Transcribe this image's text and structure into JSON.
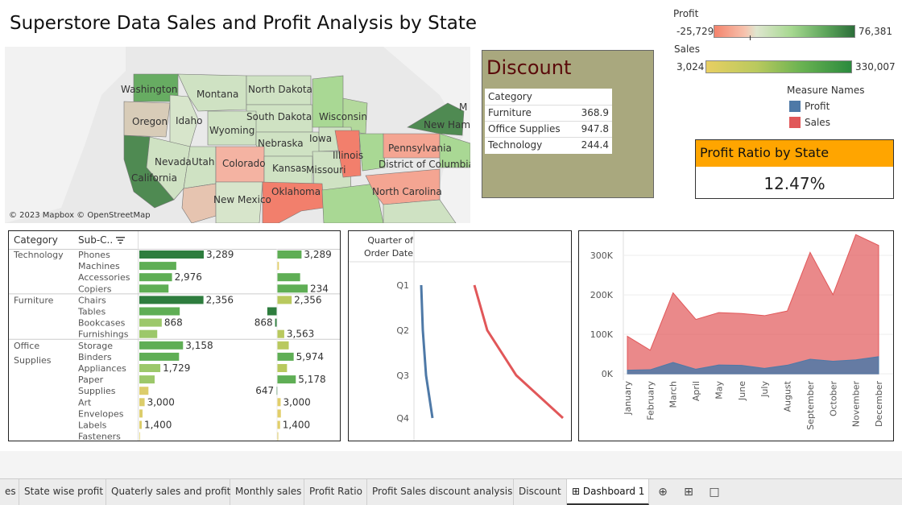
{
  "dashboard": {
    "title": "Superstore Data Sales and Profit Analysis by State"
  },
  "legends": {
    "profit": {
      "label": "Profit",
      "min": "-25,729",
      "max": "76,381"
    },
    "sales": {
      "label": "Sales",
      "min": "3,024",
      "max": "330,007"
    },
    "measure_names": {
      "title": "Measure Names",
      "items": [
        {
          "label": "Profit",
          "color": "#4e79a7"
        },
        {
          "label": "Sales",
          "color": "#e15759"
        }
      ]
    }
  },
  "map": {
    "copyright": "© 2023 Mapbox © OpenStreetMap",
    "states": [
      "Washington",
      "Montana",
      "North Dakota",
      "Oregon",
      "Idaho",
      "South Dakota",
      "Wisconsin",
      "Wyoming",
      "Nebraska",
      "Iowa",
      "New Hamp",
      "Pennsylvania",
      "Illinois",
      "Nevada",
      "Utah",
      "Colorado",
      "Kansas",
      "Missouri",
      "District of Columbia",
      "California",
      "New Mexico",
      "Oklahoma",
      "North Carolina",
      "M"
    ]
  },
  "discount": {
    "title": "Discount",
    "header": "Category",
    "rows": [
      {
        "category": "Furniture",
        "value": "368.9"
      },
      {
        "category": "Office Supplies",
        "value": "947.8"
      },
      {
        "category": "Technology",
        "value": "244.4"
      }
    ]
  },
  "profit_ratio": {
    "title": "Profit Ratio by State",
    "value": "12.47%"
  },
  "bar_table": {
    "col_category": "Category",
    "col_subcat": "Sub-C..",
    "sort_icon": "sort-icon",
    "groups": [
      {
        "category": "Technology",
        "rows": [
          {
            "sub": "Phones",
            "sales": 330007,
            "sales_label": "3,289",
            "profit": 44516,
            "profit_label": "3,289"
          },
          {
            "sub": "Machines",
            "sales": 189239,
            "sales_label": "",
            "profit": 3385,
            "profit_label": ""
          },
          {
            "sub": "Accessories",
            "sales": 167380,
            "sales_label": "2,976",
            "profit": 41937,
            "profit_label": ""
          },
          {
            "sub": "Copiers",
            "sales": 149528,
            "sales_label": "",
            "profit": 55618,
            "profit_label": "234"
          }
        ]
      },
      {
        "category": "Furniture",
        "rows": [
          {
            "sub": "Chairs",
            "sales": 328449,
            "sales_label": "2,356",
            "profit": 26590,
            "profit_label": "2,356"
          },
          {
            "sub": "Tables",
            "sales": 206966,
            "sales_label": "",
            "profit": -17725,
            "profit_label": ""
          },
          {
            "sub": "Bookcases",
            "sales": 114880,
            "sales_label": "868",
            "profit": -3473,
            "profit_label": "868"
          },
          {
            "sub": "Furnishings",
            "sales": 91705,
            "sales_label": "",
            "profit": 13059,
            "profit_label": "3,563"
          }
        ]
      },
      {
        "category": "Office Supplies",
        "rows": [
          {
            "sub": "Storage",
            "sales": 223844,
            "sales_label": "3,158",
            "profit": 21279,
            "profit_label": ""
          },
          {
            "sub": "Binders",
            "sales": 203413,
            "sales_label": "",
            "profit": 30222,
            "profit_label": "5,974"
          },
          {
            "sub": "Appliances",
            "sales": 107532,
            "sales_label": "1,729",
            "profit": 18138,
            "profit_label": ""
          },
          {
            "sub": "Paper",
            "sales": 78479,
            "sales_label": "",
            "profit": 34054,
            "profit_label": "5,178"
          },
          {
            "sub": "Supplies",
            "sales": 46674,
            "sales_label": "",
            "profit": -1189,
            "profit_label": "647"
          },
          {
            "sub": "Art",
            "sales": 27119,
            "sales_label": "3,000",
            "profit": 6528,
            "profit_label": "3,000"
          },
          {
            "sub": "Envelopes",
            "sales": 16476,
            "sales_label": "",
            "profit": 6964,
            "profit_label": ""
          },
          {
            "sub": "Labels",
            "sales": 12486,
            "sales_label": "1,400",
            "profit": 5546,
            "profit_label": "1,400"
          },
          {
            "sub": "Fasteners",
            "sales": 3024,
            "sales_label": "",
            "profit": 950,
            "profit_label": ""
          }
        ]
      }
    ]
  },
  "chart_data": [
    {
      "type": "line",
      "title": "",
      "row_header": "Quarter of Order Date",
      "categories": [
        "Q1",
        "Q2",
        "Q3",
        "Q4"
      ],
      "series": [
        {
          "name": "Profit",
          "color": "#4e79a7",
          "values": [
            0,
            0.4,
            0.6,
            0.9
          ]
        },
        {
          "name": "Sales",
          "color": "#e15759",
          "values": [
            0,
            0.9,
            1.5,
            2.0
          ]
        }
      ]
    },
    {
      "type": "area",
      "categories": [
        "January",
        "February",
        "March",
        "April",
        "May",
        "June",
        "July",
        "August",
        "September",
        "October",
        "November",
        "December"
      ],
      "ylim": [
        -10000,
        345000
      ],
      "yticks": [
        0,
        100000,
        200000,
        300000
      ],
      "ytick_labels": [
        "0K",
        "100K",
        "200K",
        "300K"
      ],
      "series": [
        {
          "name": "Sales",
          "color": "#e15759",
          "values": [
            94925,
            59751,
            205005,
            137762,
            155029,
            152718,
            147238,
            159044,
            307650,
            200323,
            352461,
            325294
          ]
        },
        {
          "name": "Profit",
          "color": "#4e79a7",
          "values": [
            9134,
            10295,
            28595,
            11588,
            22411,
            21285,
            13832,
            21776,
            36857,
            31784,
            35468,
            43369
          ]
        }
      ]
    }
  ],
  "tabs": [
    {
      "label": "es"
    },
    {
      "label": "State wise profit"
    },
    {
      "label": "Quaterly sales and profit"
    },
    {
      "label": "Monthly sales"
    },
    {
      "label": "Profit Ratio"
    },
    {
      "label": "Profit Sales discount analysis"
    },
    {
      "label": "Discount"
    },
    {
      "label": "Dashboard 1",
      "active": true
    }
  ],
  "tab_icons": [
    "new-worksheet-icon",
    "new-dashboard-icon",
    "new-story-icon"
  ]
}
